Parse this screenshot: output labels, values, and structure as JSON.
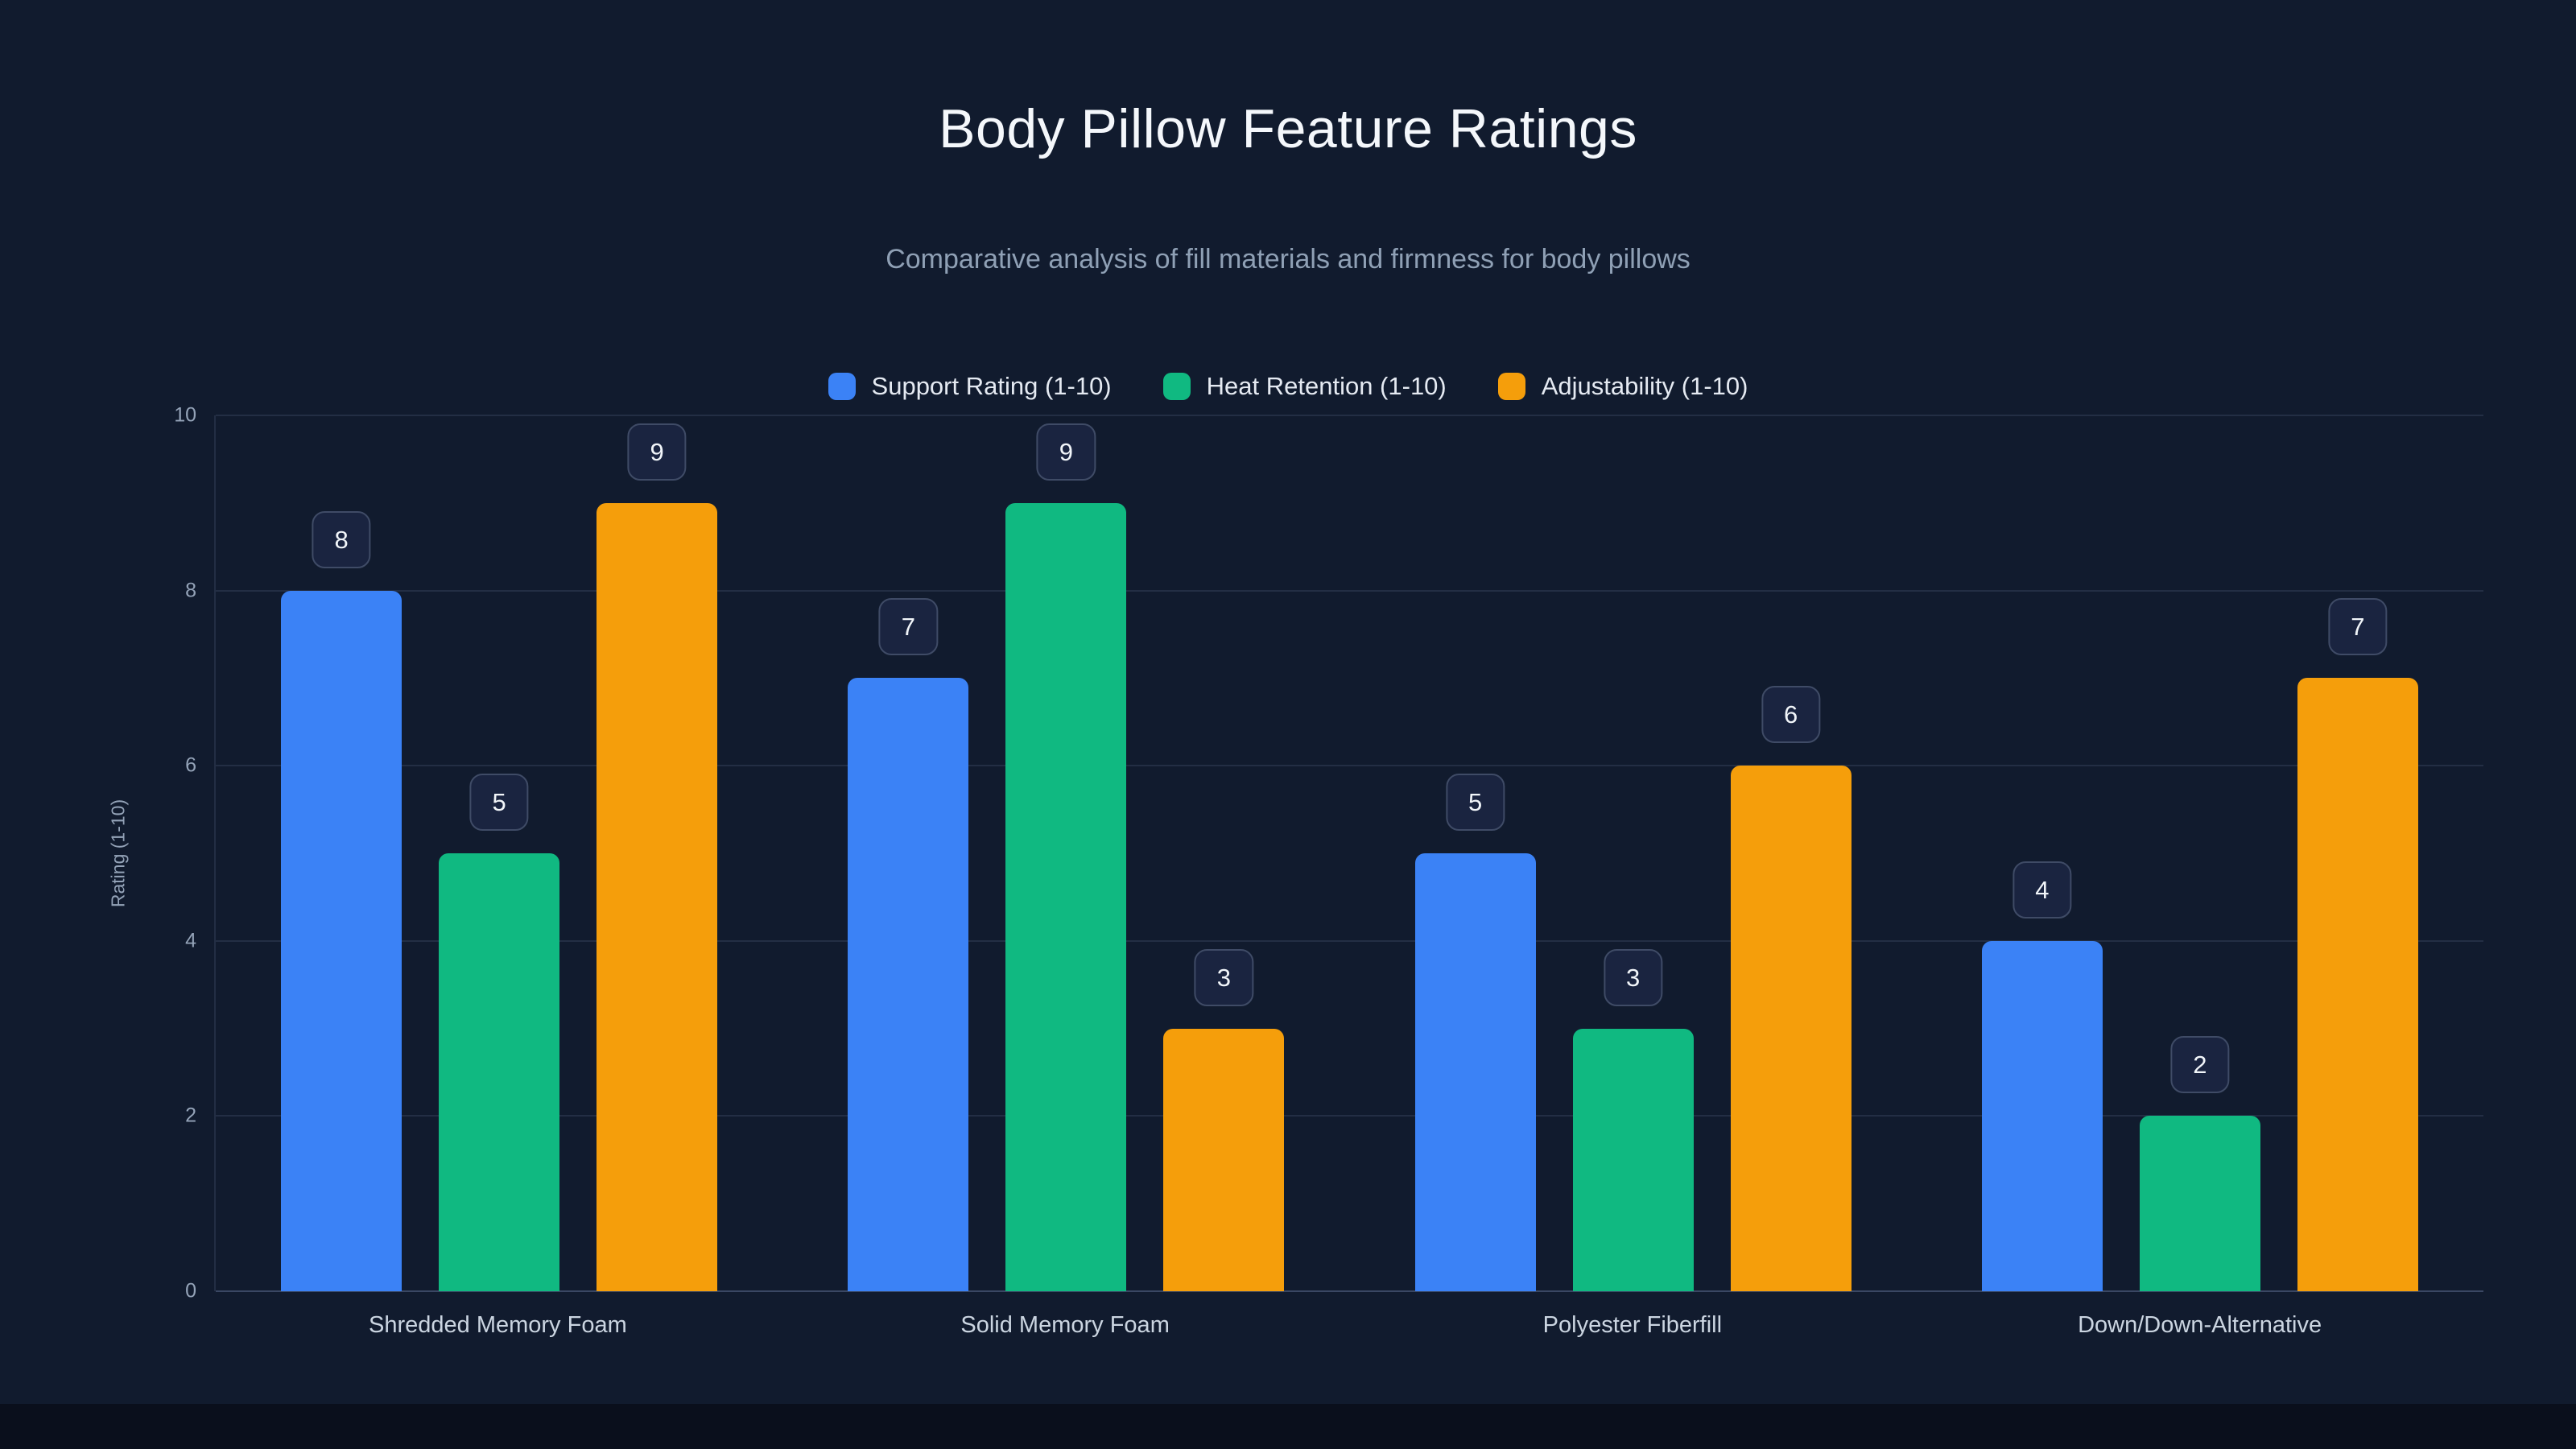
{
  "chart_data": {
    "type": "bar",
    "title": "Body Pillow Feature Ratings",
    "subtitle": "Comparative analysis of fill materials and firmness for body pillows",
    "categories": [
      "Shredded Memory Foam",
      "Solid Memory Foam",
      "Polyester Fiberfill",
      "Down/Down-Alternative"
    ],
    "series": [
      {
        "name": "Support Rating (1-10)",
        "color": "#3b82f6",
        "values": [
          8,
          7,
          5,
          4
        ]
      },
      {
        "name": "Heat Retention (1-10)",
        "color": "#10b981",
        "values": [
          5,
          9,
          3,
          2
        ]
      },
      {
        "name": "Adjustability (1-10)",
        "color": "#f59e0b",
        "values": [
          9,
          3,
          6,
          7
        ]
      }
    ],
    "xlabel": "",
    "ylabel": "Rating (1-10)",
    "ylim": [
      0,
      10
    ],
    "yticks": [
      0,
      2,
      4,
      6,
      8,
      10
    ],
    "grid": true,
    "legend_position": "top",
    "value_labels": true
  },
  "theme": {
    "background": "#111b2e",
    "footer_strip": "#0a0f1c",
    "title_color": "#f4f7fb",
    "subtitle_color": "#8fa0b5",
    "axis_text_color": "#94a3b8",
    "category_text_color": "#cbd5e1",
    "legend_text_color": "#e5eaf2",
    "badge_background": "#1a2440",
    "badge_border": "#3f4b66",
    "badge_text": "#f1f5f9",
    "gridline_color": "#232e44",
    "baseline_color": "#3a4763"
  }
}
